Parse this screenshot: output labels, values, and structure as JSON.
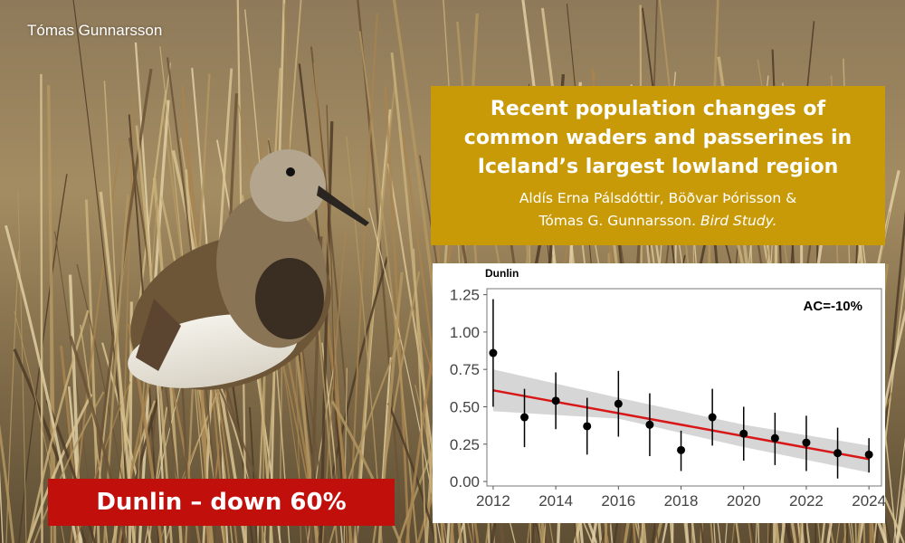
{
  "photo": {
    "credit": "Tómas Gunnarsson",
    "subject_icon": "dunlin-bird-photo",
    "colors": {
      "grass": "#a08654",
      "bird_back": "#7a5f40",
      "bird_belly": "#f0ece4"
    }
  },
  "title_box": {
    "title_lines": [
      "Recent population changes of",
      "common waders and passerines in",
      "Iceland’s largest lowland region"
    ],
    "authors_line1": "Aldís Erna Pálsdóttir, Böðvar Þórisson &",
    "authors_line2": "Tómas G. Gunnarsson.",
    "journal": "Bird Study.",
    "color": "#c99a08"
  },
  "badge": {
    "text": "Dunlin – down 60%",
    "color": "#c1100c"
  },
  "chart_data": {
    "type": "scatter",
    "title": "Dunlin",
    "annotation": "AC=-10%",
    "xlabel": "",
    "ylabel": "",
    "xlim": [
      2011.8,
      2024.4
    ],
    "ylim": [
      -0.03,
      1.29
    ],
    "x_ticks": [
      2012,
      2014,
      2016,
      2018,
      2020,
      2022,
      2024
    ],
    "y_ticks": [
      0.0,
      0.25,
      0.5,
      0.75,
      1.0,
      1.25
    ],
    "y_tick_labels": [
      "0.00",
      "0.25",
      "0.50",
      "0.75",
      "1.00",
      "1.25"
    ],
    "points": [
      {
        "x": 2012,
        "y": 0.86,
        "low": 0.5,
        "high": 1.22
      },
      {
        "x": 2013,
        "y": 0.43,
        "low": 0.23,
        "high": 0.62
      },
      {
        "x": 2014,
        "y": 0.54,
        "low": 0.35,
        "high": 0.73
      },
      {
        "x": 2015,
        "y": 0.37,
        "low": 0.18,
        "high": 0.56
      },
      {
        "x": 2016,
        "y": 0.52,
        "low": 0.3,
        "high": 0.74
      },
      {
        "x": 2017,
        "y": 0.38,
        "low": 0.17,
        "high": 0.59
      },
      {
        "x": 2018,
        "y": 0.21,
        "low": 0.07,
        "high": 0.34
      },
      {
        "x": 2019,
        "y": 0.43,
        "low": 0.24,
        "high": 0.62
      },
      {
        "x": 2020,
        "y": 0.32,
        "low": 0.14,
        "high": 0.5
      },
      {
        "x": 2021,
        "y": 0.29,
        "low": 0.11,
        "high": 0.46
      },
      {
        "x": 2022,
        "y": 0.26,
        "low": 0.07,
        "high": 0.44
      },
      {
        "x": 2023,
        "y": 0.19,
        "low": 0.02,
        "high": 0.36
      },
      {
        "x": 2024,
        "y": 0.18,
        "low": 0.06,
        "high": 0.29
      }
    ],
    "trend": {
      "x_start": 2012,
      "y_start": 0.61,
      "x_end": 2024,
      "y_end": 0.15
    },
    "band": {
      "x": [
        2012,
        2016,
        2020,
        2024
      ],
      "low": [
        0.47,
        0.42,
        0.23,
        0.06
      ],
      "high": [
        0.75,
        0.56,
        0.38,
        0.24
      ]
    },
    "grid": false,
    "colors": {
      "trend": "#d81818",
      "band": "#c8c8c8",
      "points": "#000000"
    }
  }
}
